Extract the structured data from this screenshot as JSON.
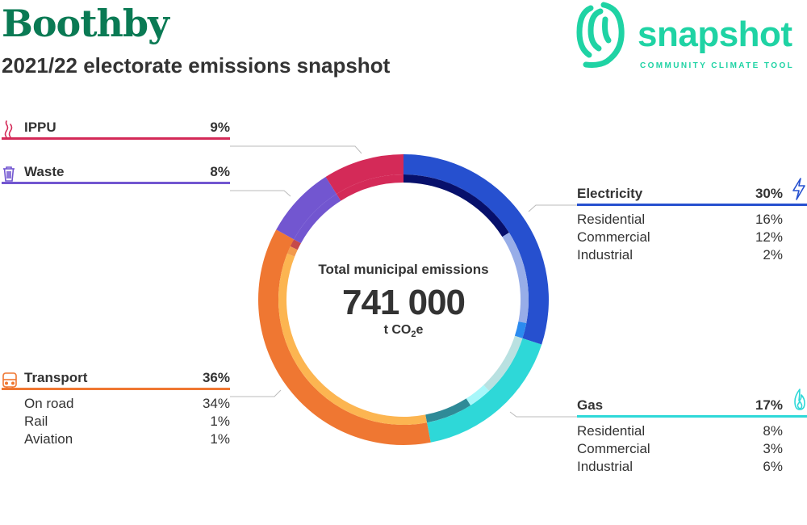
{
  "header": {
    "title": "Boothby",
    "subtitle": "2021/22 electorate emissions snapshot"
  },
  "logo": {
    "name": "snapshot",
    "tagline": "COMMUNITY CLIMATE TOOL",
    "color": "#1fd3a4"
  },
  "colors": {
    "title": "#0a7a54",
    "text": "#333333"
  },
  "chart_data": {
    "type": "pie",
    "center": {
      "label": "Total municipal emissions",
      "value": "741 000",
      "unit_prefix": "t CO",
      "unit_subscript": "2",
      "unit_suffix": "e"
    },
    "categories": [
      {
        "name": "Electricity",
        "value": 30,
        "label": "30%",
        "color": "#2650cf",
        "icon": "lightning-icon",
        "subs": [
          {
            "name": "Residential",
            "value": 16,
            "label": "16%",
            "color": "#07106b"
          },
          {
            "name": "Commercial",
            "value": 12,
            "label": "12%",
            "color": "#97ade8"
          },
          {
            "name": "Industrial",
            "value": 2,
            "label": "2%",
            "color": "#2b8bf0"
          }
        ]
      },
      {
        "name": "Gas",
        "value": 17,
        "label": "17%",
        "color": "#2ed8d8",
        "icon": "flame-icon",
        "subs": [
          {
            "name": "Residential",
            "value": 8,
            "label": "8%",
            "color": "#b9e1e1"
          },
          {
            "name": "Commercial",
            "value": 3,
            "label": "3%",
            "color": "#a7f7fa"
          },
          {
            "name": "Industrial",
            "value": 6,
            "label": "6%",
            "color": "#2f8a97"
          }
        ]
      },
      {
        "name": "Transport",
        "value": 36,
        "label": "36%",
        "color": "#ef7732",
        "icon": "train-icon",
        "subs": [
          {
            "name": "On road",
            "value": 34,
            "label": "34%",
            "color": "#fcb551"
          },
          {
            "name": "Rail",
            "value": 1,
            "label": "1%",
            "color": "#f29a4d"
          },
          {
            "name": "Aviation",
            "value": 1,
            "label": "1%",
            "color": "#c64a4a"
          }
        ]
      },
      {
        "name": "Waste",
        "value": 8,
        "label": "8%",
        "color": "#7256d0",
        "icon": "trash-icon",
        "subs": []
      },
      {
        "name": "IPPU",
        "value": 9,
        "label": "9%",
        "color": "#d42a58",
        "icon": "fumes-icon",
        "subs": []
      }
    ]
  }
}
